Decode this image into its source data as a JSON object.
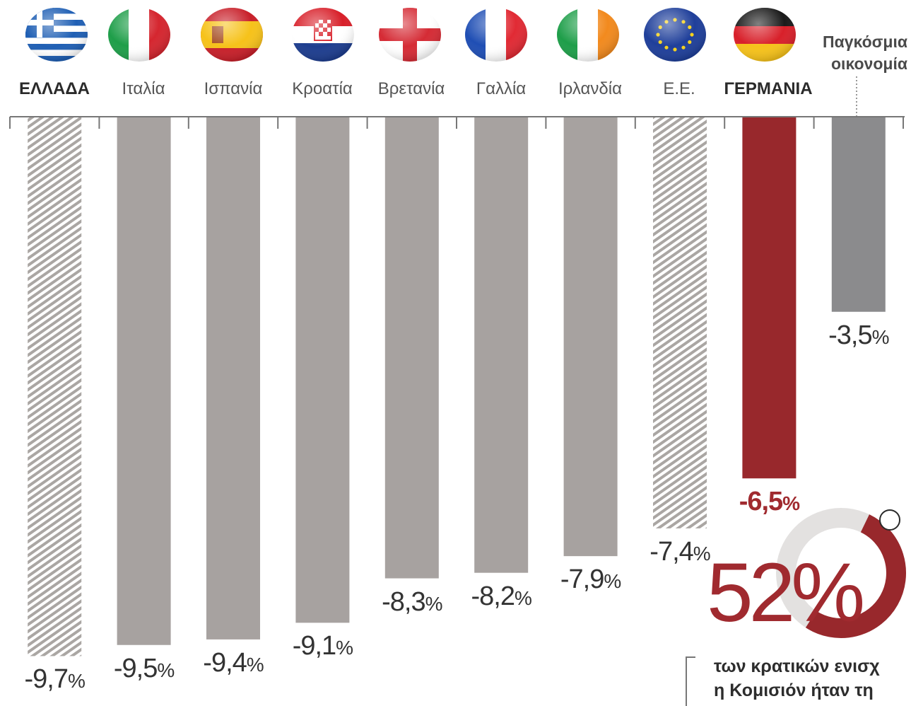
{
  "chart_data": {
    "type": "bar",
    "categories": [
      "ΕΛΛΑΔΑ",
      "Ιταλία",
      "Ισπανία",
      "Κροατία",
      "Βρετανία",
      "Γαλλία",
      "Ιρλανδία",
      "Ε.Ε.",
      "ΓΕΡΜΑΝΙΑ",
      "Παγκόσμια οικονομία"
    ],
    "values": [
      -9.7,
      -9.5,
      -9.4,
      -9.1,
      -8.3,
      -8.2,
      -7.9,
      -7.4,
      -6.5,
      -3.5
    ],
    "value_labels": [
      "-9,7%",
      "-9,5%",
      "-9,4%",
      "-9,1%",
      "-8,3%",
      "-8,2%",
      "-7,9%",
      "-7,4%",
      "-6,5%",
      "-3,5%"
    ],
    "flags": [
      "greece-flag",
      "italy-flag",
      "spain-flag",
      "croatia-flag",
      "england-flag",
      "france-flag",
      "ireland-flag",
      "eu-flag",
      "germany-flag"
    ],
    "bar_styles": [
      "hatched",
      "solid",
      "solid",
      "solid",
      "solid",
      "solid",
      "solid",
      "hatched",
      "highlight",
      "dark"
    ],
    "ylim": [
      -10,
      0
    ],
    "colors": {
      "bar": "#a7a2a0",
      "highlight": "#98282c",
      "world": "#8b8b8d",
      "hatch": "#aaa6a3",
      "axis": "#777777"
    }
  },
  "labels": {
    "greece": "ΕΛΛΑΔΑ",
    "italy": "Ιταλία",
    "spain": "Ισπανία",
    "croatia": "Κροατία",
    "britain": "Βρετανία",
    "france": "Γαλλία",
    "ireland": "Ιρλανδία",
    "eu": "Ε.Ε.",
    "germany": "ΓΕΡΜΑΝΙΑ",
    "world_line1": "Παγκόσμια",
    "world_line2": "οικονομία"
  },
  "inset": {
    "percent": "52%",
    "value": 52,
    "caption_line1": "των κρατικών ενισχ",
    "caption_line2": "η Κομισιόν ήταν τη"
  }
}
